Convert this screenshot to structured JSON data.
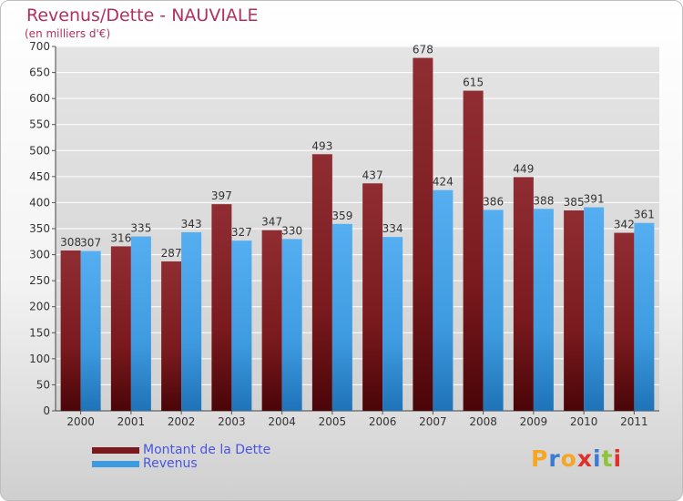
{
  "title": "Revenus/Dette - NAUVIALE",
  "subtitle": "(en milliers d'€)",
  "logo": {
    "letters": [
      "P",
      "r",
      "o",
      "x",
      "i",
      "t",
      "i"
    ],
    "colors": [
      "#f5a623",
      "#3a7bd5",
      "#f5a623",
      "#e0302b",
      "#3a7bd5",
      "#8fc33a",
      "#e0302b"
    ]
  },
  "colors": {
    "debt": "#7a1a1e",
    "revenue": "#3f9be0"
  },
  "chart_data": {
    "type": "bar",
    "title": "Revenus/Dette - NAUVIALE",
    "subtitle": "(en milliers d'€)",
    "categories": [
      "2000",
      "2001",
      "2002",
      "2003",
      "2004",
      "2005",
      "2006",
      "2007",
      "2008",
      "2009",
      "2010",
      "2011"
    ],
    "series": [
      {
        "name": "Montant de la Dette",
        "values": [
          308,
          316,
          287,
          397,
          347,
          493,
          437,
          678,
          615,
          449,
          385,
          342
        ]
      },
      {
        "name": "Revenus",
        "values": [
          307,
          335,
          343,
          327,
          330,
          359,
          334,
          424,
          386,
          388,
          391,
          361
        ]
      }
    ],
    "ylim": [
      0,
      700
    ],
    "yticks": [
      "0",
      "50",
      "100",
      "150",
      "200",
      "250",
      "300",
      "350",
      "400",
      "450",
      "500",
      "550",
      "600",
      "650",
      "700"
    ],
    "grid": true,
    "legend_position": "bottom-left"
  }
}
